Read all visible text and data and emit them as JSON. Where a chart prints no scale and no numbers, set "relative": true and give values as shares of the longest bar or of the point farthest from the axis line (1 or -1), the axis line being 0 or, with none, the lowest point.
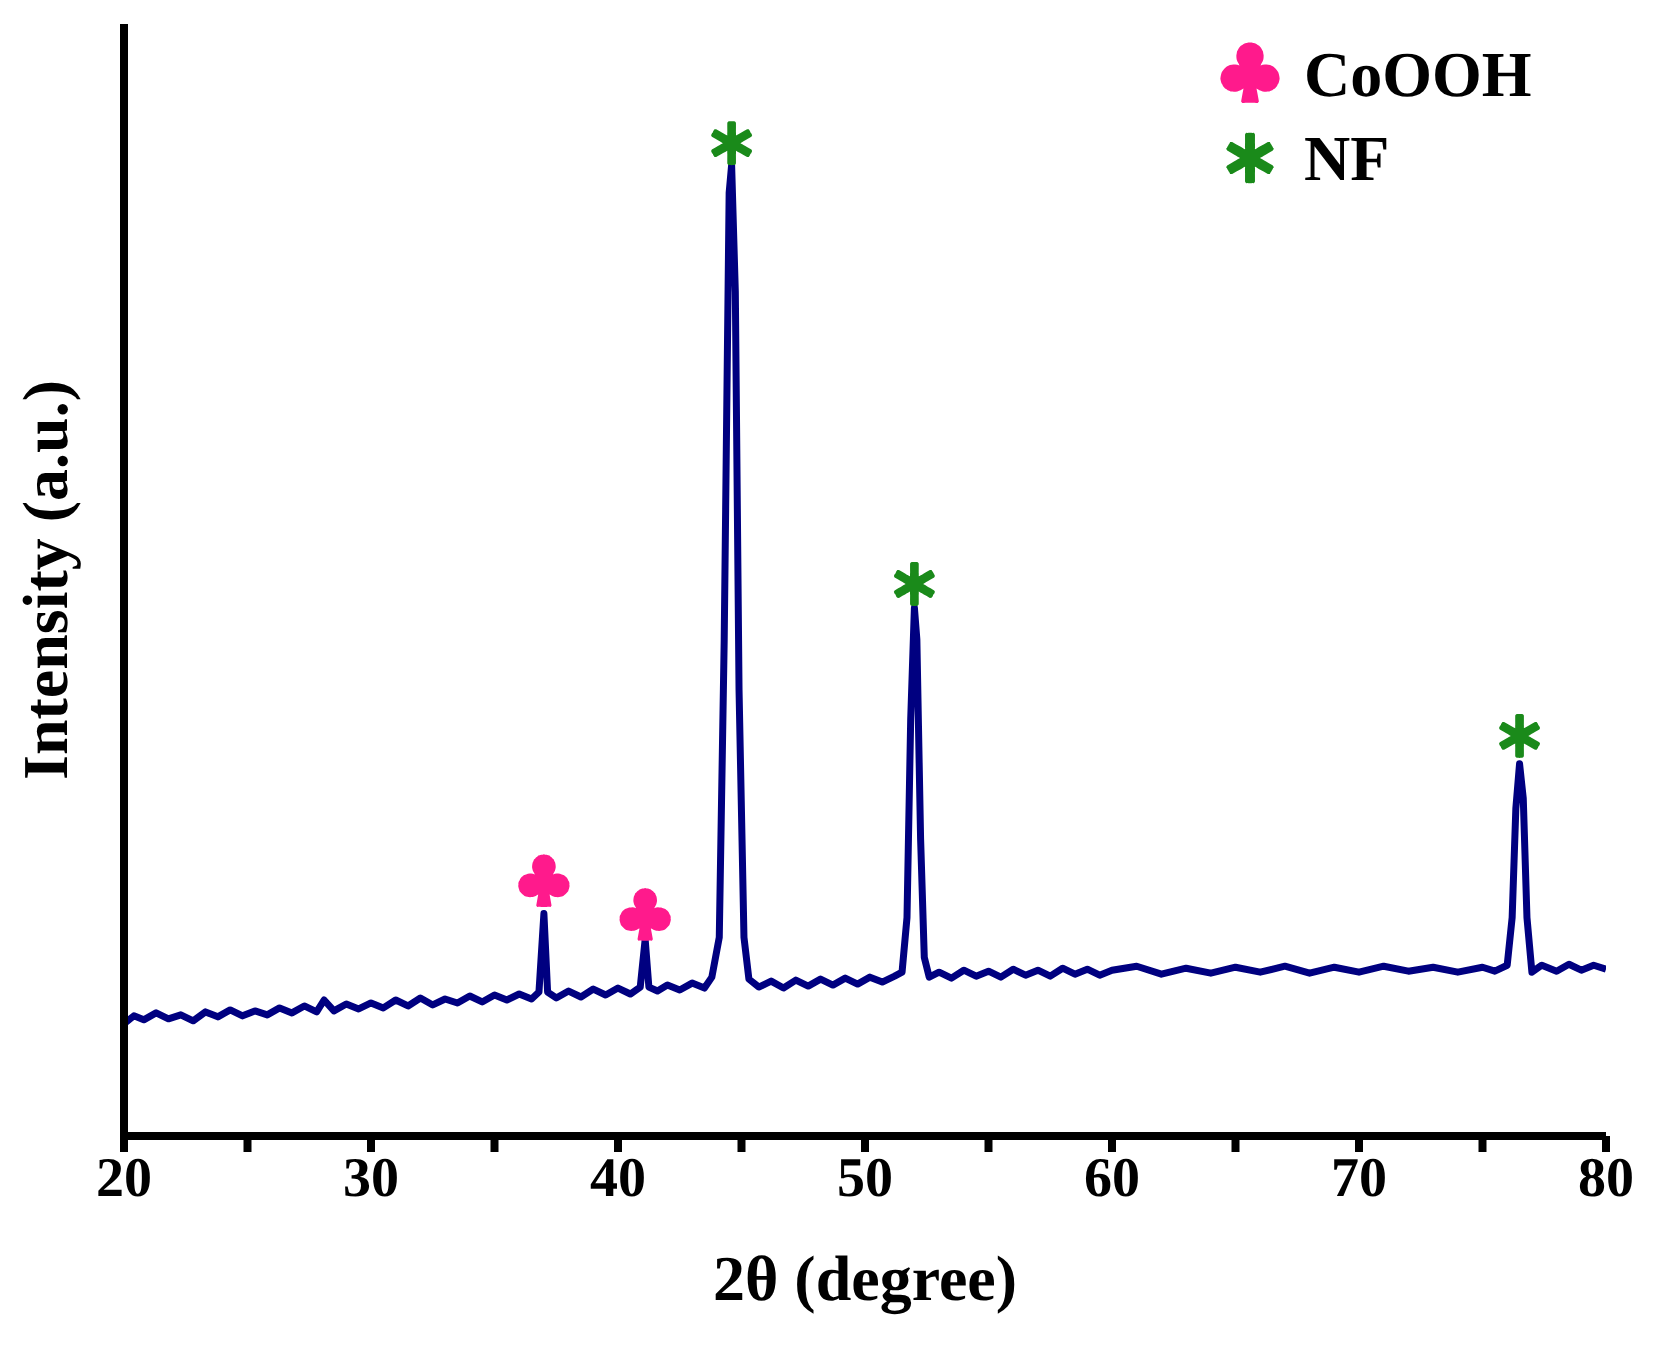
{
  "chart_data": {
    "type": "line",
    "relative": true,
    "xlabel": "2θ (degree)",
    "ylabel": "Intensity (a.u.)",
    "xlim": [
      20,
      80
    ],
    "xticks": [
      20,
      {
        "value": 25,
        "label": null
      },
      30,
      {
        "value": 35,
        "label": null
      },
      40,
      {
        "value": 45,
        "label": null
      },
      50,
      {
        "value": 55,
        "label": null
      },
      60,
      {
        "value": 65,
        "label": null
      },
      70,
      {
        "value": 75,
        "label": null
      },
      80
    ],
    "legend": "top right",
    "grid": false,
    "series": [
      {
        "color": "#000080",
        "marker": "none",
        "line_style": "solid",
        "x": [
          20,
          20.4,
          20.8,
          21.3,
          21.8,
          22.3,
          22.8,
          23.3,
          23.8,
          24.3,
          24.8,
          25.3,
          25.8,
          26.3,
          26.8,
          27.3,
          27.8,
          28.1,
          28.5,
          29,
          29.5,
          30,
          30.5,
          31,
          31.5,
          32,
          32.5,
          33,
          33.5,
          34,
          34.5,
          35,
          35.5,
          36,
          36.5,
          36.8,
          37,
          37.15,
          37.5,
          38,
          38.5,
          39,
          39.5,
          40,
          40.5,
          40.9,
          41.1,
          41.25,
          41.6,
          42,
          42.5,
          43,
          43.5,
          43.8,
          44.1,
          44.3,
          44.5,
          44.6,
          44.75,
          44.9,
          45.1,
          45.3,
          45.7,
          46.2,
          46.7,
          47.2,
          47.7,
          48.2,
          48.7,
          49.2,
          49.7,
          50.2,
          50.7,
          51.2,
          51.5,
          51.7,
          51.85,
          52,
          52.1,
          52.25,
          52.4,
          52.6,
          53,
          53.5,
          54,
          54.5,
          55,
          55.5,
          56,
          56.5,
          57,
          57.5,
          58,
          58.5,
          59,
          59.5,
          60,
          61,
          62,
          63,
          64,
          65,
          66,
          67,
          68,
          69,
          70,
          71,
          72,
          73,
          74,
          75,
          75.5,
          76,
          76.2,
          76.35,
          76.5,
          76.65,
          76.8,
          77,
          77.4,
          78,
          78.5,
          79,
          79.5,
          80
        ],
        "values": [
          0.113,
          0.121,
          0.117,
          0.124,
          0.118,
          0.122,
          0.116,
          0.125,
          0.12,
          0.127,
          0.121,
          0.126,
          0.122,
          0.129,
          0.124,
          0.131,
          0.125,
          0.137,
          0.126,
          0.133,
          0.128,
          0.134,
          0.129,
          0.137,
          0.131,
          0.139,
          0.132,
          0.138,
          0.134,
          0.141,
          0.135,
          0.142,
          0.137,
          0.143,
          0.138,
          0.145,
          0.224,
          0.145,
          0.139,
          0.146,
          0.14,
          0.148,
          0.142,
          0.149,
          0.143,
          0.15,
          0.198,
          0.15,
          0.146,
          0.152,
          0.147,
          0.154,
          0.149,
          0.16,
          0.2,
          0.5,
          0.95,
          0.978,
          0.85,
          0.45,
          0.2,
          0.158,
          0.15,
          0.156,
          0.149,
          0.157,
          0.151,
          0.158,
          0.152,
          0.159,
          0.153,
          0.16,
          0.155,
          0.161,
          0.165,
          0.22,
          0.42,
          0.532,
          0.5,
          0.3,
          0.18,
          0.16,
          0.165,
          0.159,
          0.167,
          0.161,
          0.166,
          0.16,
          0.168,
          0.162,
          0.167,
          0.161,
          0.169,
          0.163,
          0.168,
          0.162,
          0.167,
          0.171,
          0.163,
          0.169,
          0.164,
          0.17,
          0.165,
          0.171,
          0.164,
          0.17,
          0.165,
          0.171,
          0.166,
          0.17,
          0.165,
          0.17,
          0.166,
          0.172,
          0.22,
          0.33,
          0.375,
          0.34,
          0.22,
          0.165,
          0.172,
          0.166,
          0.173,
          0.167,
          0.172,
          0.168
        ]
      },
      {
        "type": "scatter",
        "name": "CoOOH",
        "color": "#ff1a8c",
        "x": [
          37,
          41.1
        ],
        "values": [
          0.256,
          0.222
        ]
      },
      {
        "type": "scatter",
        "name": "NF",
        "color": "#1a8a1a",
        "marker": "cross",
        "x": [
          44.6,
          52,
          76.5
        ],
        "values": [
          1.0,
          0.556,
          0.403
        ]
      }
    ]
  }
}
